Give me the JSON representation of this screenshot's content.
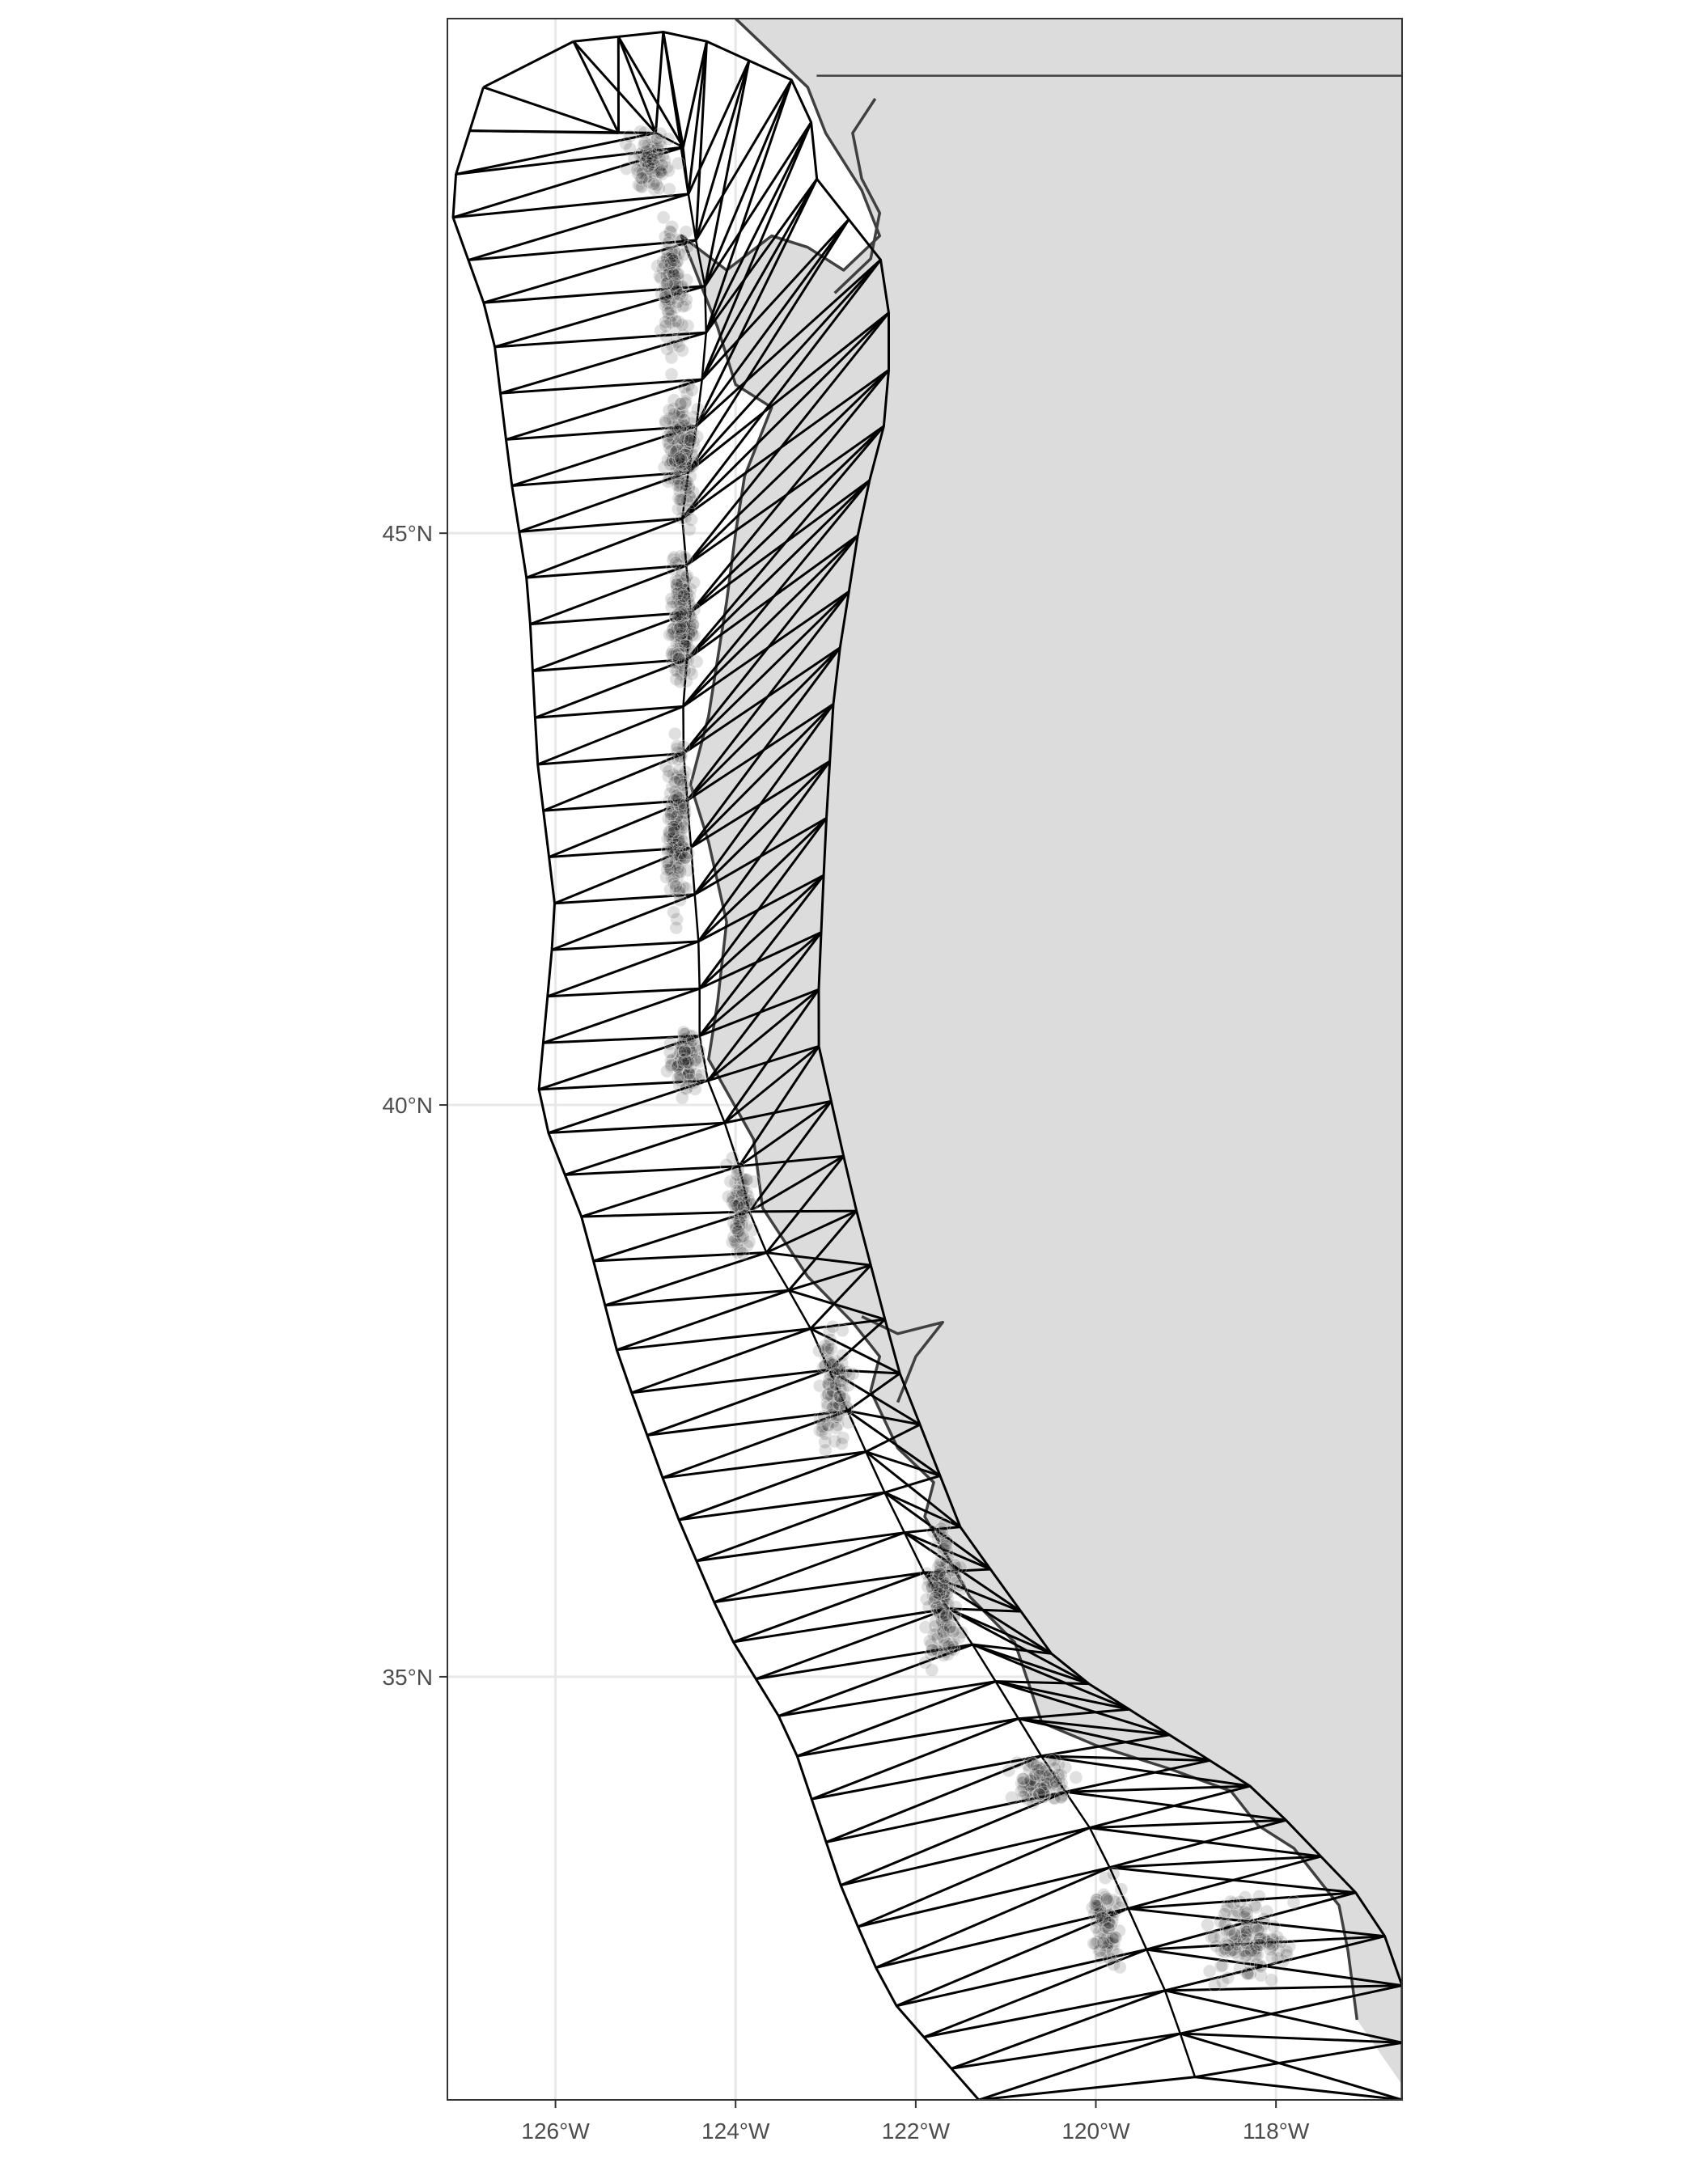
{
  "chart_data": {
    "type": "map",
    "title": "",
    "xlabel": "",
    "ylabel": "",
    "xlim": [
      -127.2,
      -116.6
    ],
    "ylim": [
      31.3,
      49.5
    ],
    "grid": true,
    "x_ticks": [
      {
        "value": -126,
        "label": "126°W"
      },
      {
        "value": -124,
        "label": "124°W"
      },
      {
        "value": -122,
        "label": "122°W"
      },
      {
        "value": -120,
        "label": "120°W"
      },
      {
        "value": -118,
        "label": "118°W"
      }
    ],
    "y_ticks": [
      {
        "value": 35,
        "label": "35°N"
      },
      {
        "value": 40,
        "label": "40°N"
      },
      {
        "value": 45,
        "label": "45°N"
      }
    ],
    "colors": {
      "land": "#dcdcdc",
      "ocean": "#ffffff",
      "mesh": "#000000",
      "coastline": "#404040",
      "grid": "#e8e8e8",
      "points": "#000000",
      "frame": "#333333"
    },
    "layers": [
      "land-polygon",
      "coastline",
      "triangulation-mesh",
      "survey-points"
    ],
    "coastline": [
      [
        -124.0,
        49.5
      ],
      [
        -123.2,
        48.9
      ],
      [
        -123.0,
        48.5
      ],
      [
        -122.6,
        48.0
      ],
      [
        -122.4,
        47.6
      ],
      [
        -122.8,
        47.3
      ],
      [
        -123.2,
        47.5
      ],
      [
        -123.6,
        47.6
      ],
      [
        -124.1,
        47.3
      ],
      [
        -124.6,
        47.6
      ],
      [
        -124.2,
        46.8
      ],
      [
        -124.0,
        46.3
      ],
      [
        -123.6,
        46.1
      ],
      [
        -123.9,
        45.5
      ],
      [
        -124.0,
        45.0
      ],
      [
        -124.1,
        44.4
      ],
      [
        -124.3,
        43.4
      ],
      [
        -124.5,
        42.8
      ],
      [
        -124.3,
        42.3
      ],
      [
        -124.1,
        41.6
      ],
      [
        -124.2,
        40.9
      ],
      [
        -124.3,
        40.4
      ],
      [
        -123.8,
        39.7
      ],
      [
        -123.7,
        39.1
      ],
      [
        -123.2,
        38.5
      ],
      [
        -122.7,
        38.1
      ],
      [
        -122.4,
        37.8
      ],
      [
        -122.5,
        37.5
      ],
      [
        -122.2,
        37.0
      ],
      [
        -121.8,
        36.7
      ],
      [
        -121.9,
        36.4
      ],
      [
        -121.4,
        35.7
      ],
      [
        -120.9,
        35.3
      ],
      [
        -120.6,
        34.6
      ],
      [
        -120.0,
        34.4
      ],
      [
        -119.2,
        34.2
      ],
      [
        -118.5,
        34.0
      ],
      [
        -118.2,
        33.7
      ],
      [
        -117.8,
        33.5
      ],
      [
        -117.3,
        33.0
      ],
      [
        -117.2,
        32.6
      ],
      [
        -117.1,
        32.0
      ]
    ],
    "inland_waterways": [
      [
        [
          -122.45,
          48.8
        ],
        [
          -122.7,
          48.5
        ],
        [
          -122.6,
          48.1
        ],
        [
          -122.4,
          47.8
        ],
        [
          -122.5,
          47.4
        ],
        [
          -122.9,
          47.1
        ]
      ],
      [
        [
          -122.6,
          38.15
        ],
        [
          -122.2,
          38.0
        ],
        [
          -121.7,
          38.1
        ],
        [
          -122.0,
          37.8
        ],
        [
          -122.2,
          37.4
        ]
      ]
    ],
    "mesh_outer_boundary": [
      [
        -125.8,
        49.3
      ],
      [
        -124.6,
        49.4
      ],
      [
        -123.2,
        48.9
      ],
      [
        -123.1,
        48.1
      ],
      [
        -122.3,
        47.3
      ],
      [
        -122.3,
        46.1
      ],
      [
        -122.6,
        45.2
      ],
      [
        -122.9,
        43.7
      ],
      [
        -123.0,
        42.4
      ],
      [
        -123.1,
        40.6
      ],
      [
        -122.7,
        39.2
      ],
      [
        -122.2,
        37.7
      ],
      [
        -121.5,
        36.3
      ],
      [
        -120.4,
        35.1
      ],
      [
        -119.4,
        34.6
      ],
      [
        -118.2,
        34.0
      ],
      [
        -117.1,
        33.1
      ],
      [
        -116.6,
        32.5
      ],
      [
        -116.6,
        31.3
      ]
    ],
    "mesh_outer_boundary_west": [
      [
        -126.8,
        48.9
      ],
      [
        -127.2,
        47.9
      ],
      [
        -126.7,
        46.8
      ],
      [
        -126.5,
        45.5
      ],
      [
        -126.3,
        44.5
      ],
      [
        -126.2,
        43.0
      ],
      [
        -126.0,
        41.7
      ],
      [
        -126.2,
        40.0
      ],
      [
        -125.7,
        39.0
      ],
      [
        -125.3,
        37.8
      ],
      [
        -124.7,
        36.5
      ],
      [
        -124.1,
        35.4
      ],
      [
        -123.4,
        34.5
      ],
      [
        -122.8,
        33.1
      ],
      [
        -122.3,
        32.2
      ],
      [
        -121.3,
        31.3
      ]
    ],
    "mesh_inner_boundary": [
      [
        -125.3,
        48.5
      ],
      [
        -124.6,
        48.5
      ],
      [
        -124.5,
        47.8
      ],
      [
        -124.3,
        47.0
      ],
      [
        -124.4,
        46.1
      ],
      [
        -124.6,
        45.2
      ],
      [
        -124.5,
        44.3
      ],
      [
        -124.6,
        43.3
      ],
      [
        -124.5,
        42.3
      ],
      [
        -124.4,
        41.3
      ],
      [
        -124.4,
        40.4
      ],
      [
        -124.0,
        39.6
      ],
      [
        -123.8,
        38.9
      ],
      [
        -123.2,
        38.1
      ],
      [
        -122.8,
        37.4
      ],
      [
        -122.4,
        36.7
      ],
      [
        -121.9,
        35.9
      ],
      [
        -121.3,
        35.2
      ],
      [
        -120.6,
        34.3
      ],
      [
        -120.0,
        33.6
      ],
      [
        -119.6,
        32.9
      ],
      [
        -119.2,
        32.2
      ],
      [
        -118.9,
        31.5
      ]
    ],
    "point_clusters": [
      {
        "lon": -124.95,
        "lat": 48.25,
        "spread_lon": 0.35,
        "spread_lat": 0.35,
        "n": 90
      },
      {
        "lon": -124.7,
        "lat": 47.2,
        "spread_lon": 0.22,
        "spread_lat": 0.7,
        "n": 120
      },
      {
        "lon": -124.6,
        "lat": 45.7,
        "spread_lon": 0.22,
        "spread_lat": 0.8,
        "n": 160
      },
      {
        "lon": -124.6,
        "lat": 44.2,
        "spread_lon": 0.2,
        "spread_lat": 0.8,
        "n": 160
      },
      {
        "lon": -124.65,
        "lat": 42.4,
        "spread_lon": 0.15,
        "spread_lat": 1.0,
        "n": 170
      },
      {
        "lon": -124.55,
        "lat": 40.4,
        "spread_lon": 0.25,
        "spread_lat": 0.4,
        "n": 90
      },
      {
        "lon": -123.95,
        "lat": 39.1,
        "spread_lon": 0.18,
        "spread_lat": 0.6,
        "n": 80
      },
      {
        "lon": -122.9,
        "lat": 37.5,
        "spread_lon": 0.25,
        "spread_lat": 0.7,
        "n": 100
      },
      {
        "lon": -121.7,
        "lat": 35.7,
        "spread_lon": 0.25,
        "spread_lat": 0.8,
        "n": 150
      },
      {
        "lon": -120.6,
        "lat": 34.1,
        "spread_lon": 0.45,
        "spread_lat": 0.3,
        "n": 90
      },
      {
        "lon": -119.9,
        "lat": 32.8,
        "spread_lon": 0.25,
        "spread_lat": 0.55,
        "n": 80
      },
      {
        "lon": -118.3,
        "lat": 32.7,
        "spread_lon": 0.6,
        "spread_lat": 0.5,
        "n": 130
      }
    ]
  }
}
